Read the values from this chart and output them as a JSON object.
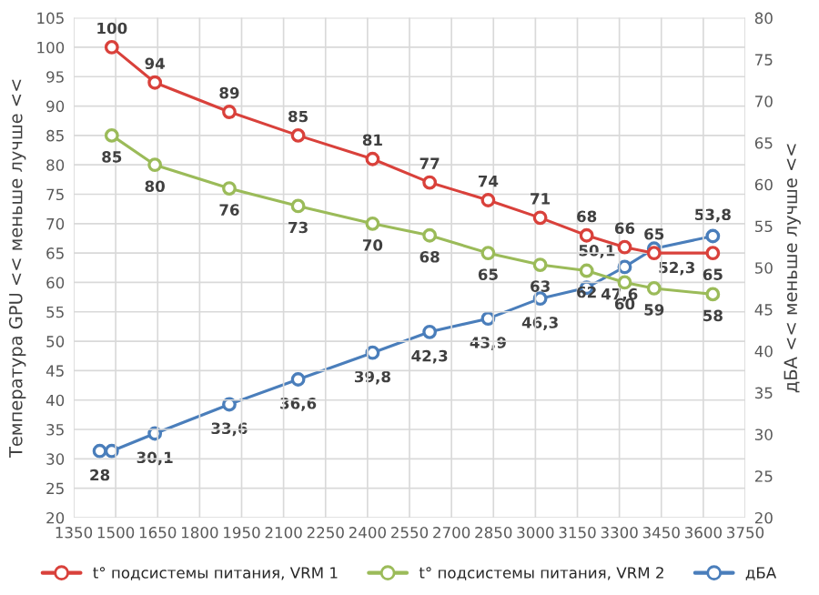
{
  "chart_data": {
    "type": "line",
    "ylabel": "Температура GPU << меньше лучше <<",
    "y2label": "дБА << меньше лучше <<",
    "xlim": [
      1350,
      3750
    ],
    "xticks": [
      1350,
      1500,
      1650,
      1800,
      1950,
      2100,
      2250,
      2400,
      2550,
      2700,
      2850,
      3000,
      3150,
      3300,
      3450,
      3600,
      3750
    ],
    "ylim": [
      20,
      105
    ],
    "yticks": [
      20,
      25,
      30,
      35,
      40,
      45,
      50,
      55,
      60,
      65,
      70,
      75,
      80,
      85,
      90,
      95,
      100,
      105
    ],
    "y2lim": [
      20,
      80
    ],
    "y2ticks": [
      20,
      25,
      30,
      35,
      40,
      45,
      50,
      55,
      60,
      65,
      70,
      75,
      80
    ],
    "grid": true,
    "legend": "bottom",
    "marker": "circle",
    "line_style": "solid",
    "series": [
      {
        "name": "t° подсистемы питания, VRM 1",
        "color": "#d9413b",
        "x": [
          1486,
          1640,
          1906,
          2152,
          2418,
          2622,
          2831,
          3017,
          3183,
          3319,
          3424,
          3634
        ],
        "values": [
          100,
          94,
          89,
          85,
          81,
          77,
          74,
          71,
          68,
          66,
          65,
          65
        ],
        "value_labels": [
          "100",
          "94",
          "89",
          "85",
          "81",
          "77",
          "74",
          "71",
          "68",
          "66",
          "65",
          "65"
        ]
      },
      {
        "name": "t° подсистемы питания, VRM 2",
        "color": "#9bbb59",
        "x": [
          1486,
          1640,
          1906,
          2152,
          2418,
          2622,
          2831,
          3017,
          3183,
          3319,
          3424,
          3634
        ],
        "values": [
          85,
          80,
          76,
          73,
          70,
          68,
          65,
          63,
          62,
          60,
          59,
          58
        ],
        "value_labels": [
          "85",
          "80",
          "76",
          "73",
          "70",
          "68",
          "65",
          "63",
          "62",
          "60",
          "59",
          "58"
        ]
      },
      {
        "name": "дБА",
        "color": "#4a7ebb",
        "axis": "y2",
        "x": [
          1443,
          1486,
          1640,
          1906,
          2152,
          2418,
          2622,
          2831,
          3017,
          3183,
          3319,
          3424,
          3634
        ],
        "values": [
          28,
          28,
          30.1,
          33.6,
          36.6,
          39.8,
          42.3,
          43.9,
          46.3,
          47.6,
          50.1,
          52.3,
          53.8
        ],
        "value_labels": [
          "28",
          null,
          "30,1",
          "33,6",
          "36,6",
          "39,8",
          "42,3",
          "43,9",
          "46,3",
          "47,6",
          "50,1",
          "52,3",
          "53,8"
        ]
      }
    ]
  }
}
